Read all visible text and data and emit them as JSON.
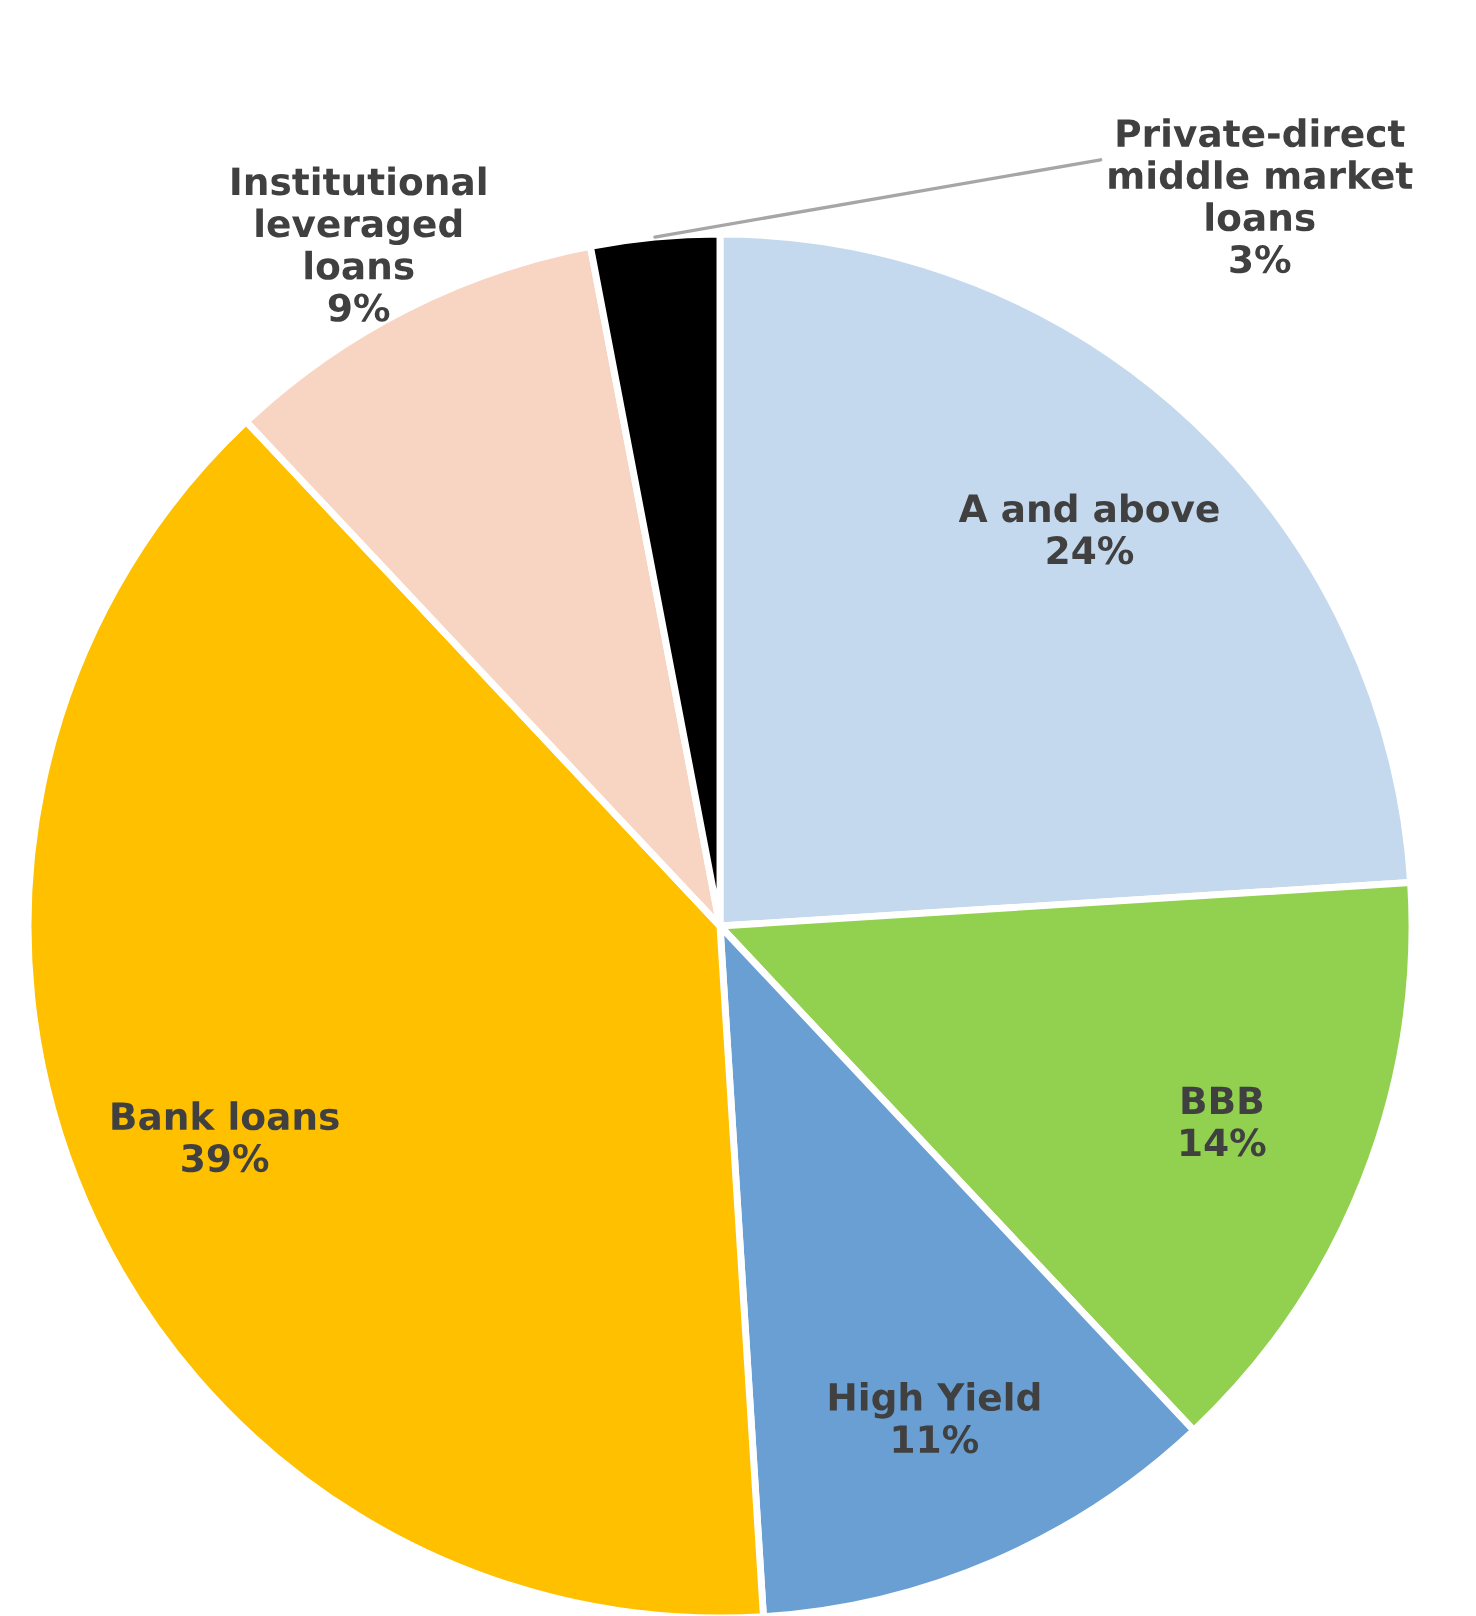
{
  "chart_data": {
    "type": "pie",
    "categories": [
      "A and above",
      "BBB",
      "High Yield",
      "Bank loans",
      "Institutional\nleveraged\nloans",
      "Private-direct\nmiddle market\nloans"
    ],
    "values": [
      24,
      14,
      11,
      39,
      9,
      3
    ],
    "value_labels": [
      "24%",
      "14%",
      "11%",
      "39%",
      "9%",
      "3%"
    ],
    "colors": [
      "#c5d9ee",
      "#92d050",
      "#6a9fd3",
      "#ffc000",
      "#f8d5c2",
      "#000000"
    ]
  }
}
